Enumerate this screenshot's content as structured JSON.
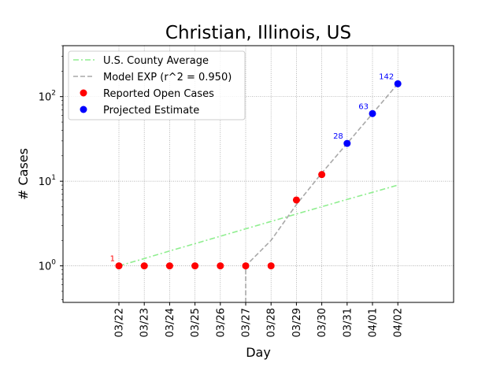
{
  "chart_data": {
    "type": "line",
    "title": "Christian, Illinois, US",
    "xlabel": "Day",
    "ylabel": "# Cases",
    "yscale": "log",
    "ylim": [
      0.37,
      400
    ],
    "y_ticks": [
      {
        "value": 1,
        "base": "10",
        "exp": "0"
      },
      {
        "value": 10,
        "base": "10",
        "exp": "1"
      },
      {
        "value": 100,
        "base": "10",
        "exp": "2"
      }
    ],
    "grid": true,
    "legend_position": "top-left",
    "categories": [
      "03/22",
      "03/23",
      "03/24",
      "03/25",
      "03/26",
      "03/27",
      "03/28",
      "03/29",
      "03/30",
      "03/31",
      "04/01",
      "04/02"
    ],
    "series": [
      {
        "name": "U.S. County Average",
        "style": "dashdot",
        "color": "#90ee90",
        "x": [
          "03/22",
          "03/23",
          "03/24",
          "03/25",
          "03/26",
          "03/27",
          "03/28",
          "03/29",
          "03/30",
          "03/31",
          "04/01",
          "04/02"
        ],
        "values": [
          1.0,
          1.22,
          1.5,
          1.83,
          2.24,
          2.74,
          3.35,
          4.1,
          5.0,
          6.1,
          7.4,
          9.0
        ]
      },
      {
        "name": "Model EXP (r^2 = 0.950)",
        "style": "dashed",
        "color": "#a9a9a9",
        "x": [
          "03/27",
          "03/27",
          "03/28",
          "03/29",
          "03/30",
          "03/31",
          "04/01",
          "04/02"
        ],
        "values": [
          0.3,
          1.0,
          2.0,
          5.3,
          12.5,
          28,
          63,
          142
        ]
      },
      {
        "name": "Reported Open Cases",
        "style": "marker",
        "color": "#ff0000",
        "x": [
          "03/22",
          "03/23",
          "03/24",
          "03/25",
          "03/26",
          "03/27",
          "03/28",
          "03/29",
          "03/30"
        ],
        "values": [
          1,
          1,
          1,
          1,
          1,
          1,
          1,
          6,
          12
        ]
      },
      {
        "name": "Projected Estimate",
        "style": "marker",
        "color": "#0000ff",
        "x": [
          "03/31",
          "04/01",
          "04/02"
        ],
        "values": [
          28,
          63,
          142
        ]
      }
    ],
    "annotations": [
      {
        "text": "1",
        "x": "03/22",
        "y": 1,
        "color": "#ff0000"
      },
      {
        "text": "28",
        "x": "03/31",
        "y": 28,
        "color": "#0000ff"
      },
      {
        "text": "63",
        "x": "04/01",
        "y": 63,
        "color": "#0000ff"
      },
      {
        "text": "142",
        "x": "04/02",
        "y": 142,
        "color": "#0000ff"
      }
    ]
  }
}
